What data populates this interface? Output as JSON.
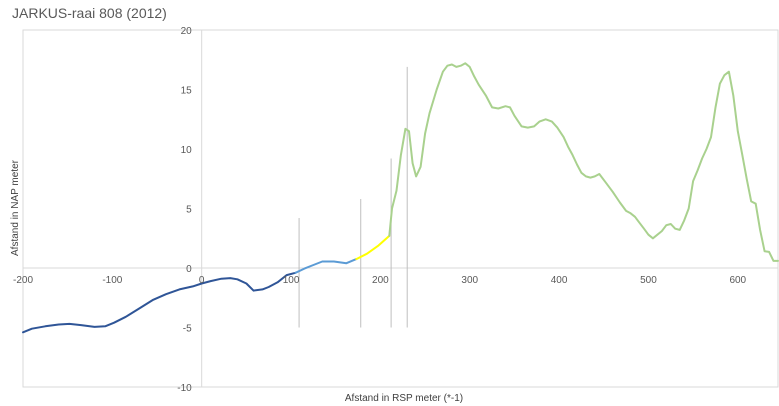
{
  "chart_data": {
    "type": "line",
    "title": "JARKUS-raai 808 (2012)",
    "xlabel": "Afstand in RSP meter (*-1)",
    "ylabel": "Afstand in NAP meter",
    "xlim": [
      -200,
      645
    ],
    "ylim": [
      -10,
      20
    ],
    "x_ticks": [
      -200,
      -100,
      0,
      100,
      200,
      300,
      400,
      500,
      600
    ],
    "y_ticks": [
      -10,
      -5,
      0,
      5,
      10,
      15,
      20
    ],
    "grid": false,
    "legend": "none",
    "series": [
      {
        "color": "#2f5597",
        "x": [
          -200,
          -190,
          -175,
          -160,
          -148,
          -135,
          -120,
          -108,
          -98,
          -85,
          -70,
          -55,
          -40,
          -25,
          -10,
          0,
          10,
          22,
          32,
          40,
          50,
          58,
          68,
          75,
          85,
          95,
          105
        ],
        "y": [
          -5.4,
          -5.1,
          -4.9,
          -4.75,
          -4.7,
          -4.8,
          -4.95,
          -4.9,
          -4.6,
          -4.1,
          -3.4,
          -2.7,
          -2.2,
          -1.8,
          -1.55,
          -1.3,
          -1.1,
          -0.9,
          -0.85,
          -0.95,
          -1.3,
          -1.9,
          -1.8,
          -1.6,
          -1.2,
          -0.6,
          -0.4
        ]
      },
      {
        "color": "#5b9bd5",
        "x": [
          105,
          115,
          125,
          135,
          148,
          162,
          173
        ],
        "y": [
          -0.4,
          -0.05,
          0.25,
          0.55,
          0.55,
          0.4,
          0.75
        ]
      },
      {
        "color": "#ffff00",
        "x": [
          173,
          185,
          198,
          210
        ],
        "y": [
          0.75,
          1.2,
          1.9,
          2.7
        ]
      },
      {
        "color": "#a9d18e",
        "x": [
          210,
          213,
          218,
          223,
          228,
          232,
          236,
          240,
          245,
          250,
          255,
          263,
          270,
          275,
          280,
          285,
          290,
          295,
          300,
          305,
          310,
          318,
          325,
          332,
          340,
          345,
          350,
          358,
          365,
          372,
          378,
          385,
          392,
          398,
          405,
          410,
          415,
          420,
          425,
          430,
          435,
          440,
          445,
          452,
          460,
          468,
          475,
          480,
          485,
          490,
          495,
          500,
          505,
          510,
          515,
          520,
          525,
          530,
          535,
          540,
          545,
          550,
          555,
          560,
          565,
          570,
          575,
          580,
          585,
          590,
          595,
          600,
          605,
          610,
          615,
          620,
          625,
          630,
          635,
          640,
          645
        ],
        "y": [
          2.7,
          5.0,
          6.5,
          9.5,
          11.7,
          11.5,
          8.8,
          7.7,
          8.5,
          11.3,
          13.0,
          15.0,
          16.5,
          17.0,
          17.1,
          16.9,
          17.0,
          17.2,
          16.9,
          16.1,
          15.4,
          14.5,
          13.5,
          13.4,
          13.6,
          13.5,
          12.8,
          11.9,
          11.8,
          11.9,
          12.3,
          12.5,
          12.3,
          11.8,
          11.0,
          10.2,
          9.5,
          8.7,
          8.0,
          7.7,
          7.6,
          7.7,
          7.9,
          7.2,
          6.4,
          5.5,
          4.8,
          4.6,
          4.3,
          3.8,
          3.3,
          2.8,
          2.5,
          2.8,
          3.1,
          3.6,
          3.7,
          3.3,
          3.2,
          4.0,
          5.0,
          7.3,
          8.2,
          9.2,
          10.0,
          11.0,
          13.5,
          15.5,
          16.2,
          16.5,
          14.5,
          11.5,
          9.5,
          7.5,
          5.6,
          5.4,
          3.2,
          1.4,
          1.35,
          0.6,
          0.6
        ]
      }
    ],
    "vertical_markers": [
      {
        "x": 109,
        "y_top": 4.2,
        "y_bottom": -5.0
      },
      {
        "x": 178,
        "y_top": 5.8,
        "y_bottom": -5.0
      },
      {
        "x": 212,
        "y_top": 9.2,
        "y_bottom": -5.0
      },
      {
        "x": 230,
        "y_top": 16.9,
        "y_bottom": -5.0
      }
    ]
  }
}
